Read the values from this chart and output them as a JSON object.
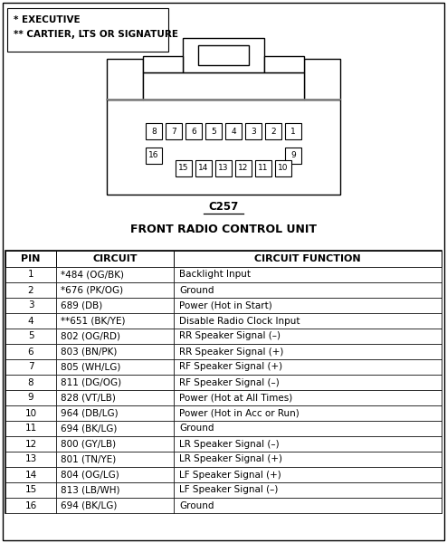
{
  "title_note1": "* EXECUTIVE",
  "title_note2": "** CARTIER, LTS OR SIGNATURE",
  "connector_label": "C257",
  "connector_title": "FRONT RADIO CONTROL UNIT",
  "table_headers": [
    "PIN",
    "CIRCUIT",
    "CIRCUIT FUNCTION"
  ],
  "rows": [
    [
      "1",
      "*484 (OG/BK)",
      "Backlight Input"
    ],
    [
      "2",
      "*676 (PK/OG)",
      "Ground"
    ],
    [
      "3",
      "689 (DB)",
      "Power (Hot in Start)"
    ],
    [
      "4",
      "**651 (BK/YE)",
      "Disable Radio Clock Input"
    ],
    [
      "5",
      "802 (OG/RD)",
      "RR Speaker Signal (–)"
    ],
    [
      "6",
      "803 (BN/PK)",
      "RR Speaker Signal (+)"
    ],
    [
      "7",
      "805 (WH/LG)",
      "RF Speaker Signal (+)"
    ],
    [
      "8",
      "811 (DG/OG)",
      "RF Speaker Signal (–)"
    ],
    [
      "9",
      "828 (VT/LB)",
      "Power (Hot at All Times)"
    ],
    [
      "10",
      "964 (DB/LG)",
      "Power (Hot in Acc or Run)"
    ],
    [
      "11",
      "694 (BK/LG)",
      "Ground"
    ],
    [
      "12",
      "800 (GY/LB)",
      "LR Speaker Signal (–)"
    ],
    [
      "13",
      "801 (TN/YE)",
      "LR Speaker Signal (+)"
    ],
    [
      "14",
      "804 (OG/LG)",
      "LF Speaker Signal (+)"
    ],
    [
      "15",
      "813 (LB/WH)",
      "LF Speaker Signal (–)"
    ],
    [
      "16",
      "694 (BK/LG)",
      "Ground"
    ]
  ],
  "bg_color": "#ffffff",
  "border_color": "#000000",
  "font_size_table": 7.5,
  "font_size_header": 8.0,
  "font_size_note": 7.5,
  "font_size_connector_label": 8.5,
  "font_size_connector_title": 9.0
}
